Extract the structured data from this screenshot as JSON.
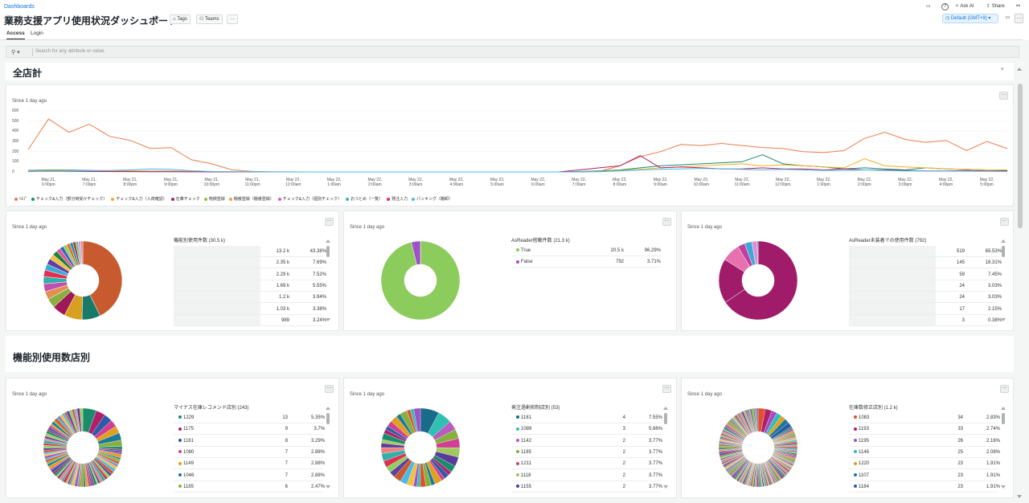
{
  "header": {
    "breadcrumb": "Dashboards",
    "title": "業務支援アプリ使用状況ダッシュボード",
    "tags_label": "Tags",
    "teams_label": "Teams",
    "more_label": "···",
    "ask_ai_label": "Ask AI",
    "share_label": "Share",
    "timezone_label": "Default (GMT+9)"
  },
  "tabs": [
    {
      "label": "Access"
    },
    {
      "label": "Login"
    }
  ],
  "filter": {
    "placeholder": "Search for any attribute or value."
  },
  "sections": [
    {
      "title": "全店計"
    },
    {
      "title": "機能別使用数店別"
    }
  ],
  "line_chart": {
    "since": "Since 1 day ago",
    "y_ticks": [
      "600",
      "500",
      "400",
      "300",
      "200",
      "100",
      "0"
    ],
    "x_ticks": [
      [
        "May 21,",
        "6:00pm"
      ],
      [
        "May 21,",
        "7:00pm"
      ],
      [
        "May 21,",
        "8:00pm"
      ],
      [
        "May 21,",
        "9:00pm"
      ],
      [
        "May 21,",
        "10:00pm"
      ],
      [
        "May 21,",
        "11:00pm"
      ],
      [
        "May 22,",
        "12:00am"
      ],
      [
        "May 22,",
        "1:00am"
      ],
      [
        "May 22,",
        "2:00am"
      ],
      [
        "May 22,",
        "3:00am"
      ],
      [
        "May 22,",
        "4:00am"
      ],
      [
        "May 22,",
        "5:00am"
      ],
      [
        "May 22,",
        "6:00am"
      ],
      [
        "May 22,",
        "7:00am"
      ],
      [
        "May 22,",
        "8:00am"
      ],
      [
        "May 22,",
        "9:00am"
      ],
      [
        "May 22,",
        "10:00am"
      ],
      [
        "May 22,",
        "11:00am"
      ],
      [
        "May 22,",
        "12:00pm"
      ],
      [
        "May 22,",
        "1:00pm"
      ],
      [
        "May 22,",
        "2:00pm"
      ],
      [
        "May 22,",
        "3:00pm"
      ],
      [
        "May 22,",
        "4:00pm"
      ],
      [
        "May 22,",
        "5:00pm"
      ]
    ],
    "legend": [
      {
        "name": "ﾍﾙﾌﾟ",
        "color": "#f07a4a"
      },
      {
        "name": "チェック&入力（部分荷受けチェック）",
        "color": "#1a8c6b"
      },
      {
        "name": "チェック&入力（入荷確認）",
        "color": "#f0b020"
      },
      {
        "name": "在庫チェック",
        "color": "#b0206a"
      },
      {
        "name": "物損登録",
        "color": "#88c440"
      },
      {
        "name": "棚番登録（棚番登録）",
        "color": "#f0a050"
      },
      {
        "name": "チェック&入力（個別チェック）",
        "color": "#d45cc0"
      },
      {
        "name": "おつとめ（一覧）",
        "color": "#2ec0b0"
      },
      {
        "name": "発注入力",
        "color": "#e0305a"
      },
      {
        "name": "パッキング（棚卸）",
        "color": "#4db8e8"
      }
    ]
  },
  "chart_data": {
    "type": "line",
    "ylim": [
      0,
      600
    ],
    "x": [
      "5/21 5:30pm",
      "6:00pm",
      "6:30pm",
      "7:00pm",
      "7:30pm",
      "8:00pm",
      "8:30pm",
      "9:00pm",
      "9:30pm",
      "10:00pm",
      "10:30pm",
      "11:00pm",
      "11:30pm",
      "12:00am",
      "12:30am",
      "1:00am",
      "1:30am",
      "2:00am",
      "2:30am",
      "3:00am",
      "3:30am",
      "4:00am",
      "4:30am",
      "5:00am",
      "5:30am",
      "6:00am",
      "6:30am",
      "7:00am",
      "7:30am",
      "8:00am",
      "8:30am",
      "9:00am",
      "9:30am",
      "10:00am",
      "10:30am",
      "11:00am",
      "11:30am",
      "12:00pm",
      "12:30pm",
      "1:00pm",
      "1:30pm",
      "2:00pm",
      "2:30pm",
      "3:00pm",
      "3:30pm",
      "4:00pm",
      "4:30pm",
      "5:00pm",
      "5:30pm"
    ],
    "series": [
      {
        "name": "ﾍﾙﾌﾟ",
        "values": [
          220,
          520,
          390,
          470,
          350,
          310,
          230,
          240,
          120,
          80,
          20,
          5,
          2,
          1,
          0,
          0,
          0,
          0,
          0,
          0,
          0,
          0,
          0,
          0,
          0,
          0,
          0,
          0,
          5,
          60,
          150,
          200,
          270,
          260,
          280,
          260,
          240,
          230,
          200,
          190,
          210,
          330,
          390,
          320,
          290,
          310,
          210,
          300,
          230
        ]
      },
      {
        "name": "チェック&入力（部分荷受けチェック）",
        "values": [
          15,
          20,
          18,
          15,
          12,
          10,
          8,
          8,
          5,
          3,
          2,
          1,
          0,
          0,
          0,
          0,
          0,
          0,
          0,
          0,
          0,
          0,
          0,
          0,
          0,
          0,
          0,
          5,
          10,
          20,
          40,
          60,
          70,
          80,
          90,
          100,
          170,
          80,
          60,
          50,
          30,
          40,
          30,
          20,
          40,
          30,
          25,
          20,
          15
        ]
      },
      {
        "name": "チェック&入力（入荷確認）",
        "values": [
          10,
          15,
          12,
          10,
          8,
          8,
          6,
          5,
          4,
          2,
          1,
          0,
          0,
          0,
          0,
          0,
          0,
          0,
          0,
          0,
          0,
          0,
          0,
          0,
          0,
          0,
          0,
          2,
          5,
          15,
          25,
          40,
          50,
          60,
          70,
          80,
          60,
          70,
          60,
          50,
          40,
          130,
          60,
          50,
          40,
          30,
          25,
          20,
          20
        ]
      },
      {
        "name": "在庫チェック",
        "values": [
          5,
          8,
          6,
          5,
          4,
          3,
          2,
          2,
          1,
          1,
          0,
          0,
          0,
          0,
          0,
          0,
          0,
          0,
          0,
          0,
          0,
          0,
          0,
          0,
          0,
          0,
          0,
          20,
          40,
          60,
          160,
          40,
          50,
          40,
          30,
          30,
          40,
          30,
          30,
          20,
          30,
          20,
          20,
          15,
          10,
          10,
          15,
          10,
          10
        ]
      },
      {
        "name": "パッキング（棚卸）",
        "values": [
          8,
          10,
          9,
          12,
          15,
          20,
          30,
          25,
          12,
          5,
          2,
          1,
          0,
          0,
          0,
          0,
          0,
          0,
          0,
          0,
          0,
          0,
          0,
          0,
          0,
          0,
          0,
          0,
          2,
          10,
          20,
          25,
          30,
          35,
          30,
          25,
          20,
          25,
          20,
          15,
          15,
          20,
          15,
          10,
          10,
          8,
          8,
          6,
          5
        ]
      }
    ]
  },
  "pie_panels": [
    {
      "since": "Since 1 day ago",
      "title": "機能別使用件数 (30.5 k)",
      "rows": [
        {
          "value": "13.2 k",
          "pct": "43.38%"
        },
        {
          "value": "2.35 k",
          "pct": "7.69%"
        },
        {
          "value": "2.29 k",
          "pct": "7.52%"
        },
        {
          "value": "1.69 k",
          "pct": "5.55%"
        },
        {
          "value": "1.2 k",
          "pct": "3.94%"
        },
        {
          "value": "1.03 k",
          "pct": "3.38%"
        },
        {
          "value": "989",
          "pct": "3.24%"
        }
      ]
    },
    {
      "since": "Since 1 day ago",
      "title": "AsReader搭載件数 (21.3 k)",
      "rows": [
        {
          "name": "True",
          "value": "20.5 k",
          "pct": "96.29%",
          "color": "#8ccc5c"
        },
        {
          "name": "False",
          "value": "792",
          "pct": "3.71%",
          "color": "#a050c8"
        }
      ]
    },
    {
      "since": "Since 1 day ago",
      "title": "AsReader未装着での使用件数 (792)",
      "rows": [
        {
          "value": "519",
          "pct": "65.53%"
        },
        {
          "value": "145",
          "pct": "18.31%"
        },
        {
          "value": "59",
          "pct": "7.45%"
        },
        {
          "value": "24",
          "pct": "3.03%"
        },
        {
          "value": "24",
          "pct": "3.03%"
        },
        {
          "value": "17",
          "pct": "2.15%"
        },
        {
          "value": "3",
          "pct": "0.38%"
        }
      ]
    },
    {
      "since": "Since 1 day ago",
      "title": "マイナス在庫レコメンド店別 (243)",
      "rows": [
        {
          "name": "1229",
          "value": "13",
          "pct": "5.35%",
          "color": "#1a8c6b"
        },
        {
          "name": "1175",
          "value": "9",
          "pct": "3.7%",
          "color": "#b0206a"
        },
        {
          "name": "1161",
          "value": "8",
          "pct": "3.29%",
          "color": "#2a5aa8"
        },
        {
          "name": "1080",
          "value": "7",
          "pct": "2.88%",
          "color": "#d04090"
        },
        {
          "name": "1149",
          "value": "7",
          "pct": "2.88%",
          "color": "#e0a020"
        },
        {
          "name": "1046",
          "value": "7",
          "pct": "2.88%",
          "color": "#1a7a9a"
        },
        {
          "name": "1185",
          "value": "6",
          "pct": "2.47%",
          "color": "#88b040"
        }
      ]
    },
    {
      "since": "Since 1 day ago",
      "title": "発注過剰抑制店別 (53)",
      "rows": [
        {
          "name": "1181",
          "value": "4",
          "pct": "7.55%",
          "color": "#1a6a8a"
        },
        {
          "name": "1089",
          "value": "3",
          "pct": "5.66%",
          "color": "#2ec0b0"
        },
        {
          "name": "1142",
          "value": "2",
          "pct": "3.77%",
          "color": "#b85cc0"
        },
        {
          "name": "1185",
          "value": "2",
          "pct": "3.77%",
          "color": "#88b040"
        },
        {
          "name": "1211",
          "value": "2",
          "pct": "3.77%",
          "color": "#d04090"
        },
        {
          "name": "1118",
          "value": "2",
          "pct": "3.77%",
          "color": "#a0c860"
        },
        {
          "name": "1155",
          "value": "2",
          "pct": "3.77%",
          "color": "#5a3a9a"
        }
      ]
    },
    {
      "since": "Since 1 day ago",
      "title": "在庫数修正店別 (1.2 k)",
      "rows": [
        {
          "name": "1083",
          "value": "34",
          "pct": "2.83%",
          "color": "#e0502a"
        },
        {
          "name": "1193",
          "value": "33",
          "pct": "2.74%",
          "color": "#b0206a"
        },
        {
          "name": "1195",
          "value": "26",
          "pct": "2.16%",
          "color": "#a050c8"
        },
        {
          "name": "1146",
          "value": "25",
          "pct": "2.08%",
          "color": "#2ec0b0"
        },
        {
          "name": "1220",
          "value": "23",
          "pct": "1.91%",
          "color": "#e0a020"
        },
        {
          "name": "1107",
          "value": "23",
          "pct": "1.91%",
          "color": "#1a7a9a"
        },
        {
          "name": "1184",
          "value": "23",
          "pct": "1.91%",
          "color": "#2a5aa8"
        }
      ]
    }
  ],
  "donuts": [
    {
      "slices": [
        43.38,
        7.69,
        7.52,
        5.55,
        3.94,
        3.38,
        3.24,
        3,
        2.8,
        2.6,
        2.4,
        2.2,
        2,
        1.8,
        1.6,
        1.5,
        1.4,
        1.3,
        1.2,
        1.1,
        1,
        0.9
      ],
      "colors": [
        "#c85a30",
        "#1a7a6a",
        "#d8a020",
        "#a01858",
        "#88b040",
        "#e09050",
        "#c050b0",
        "#30b0a8",
        "#e03050",
        "#40a8d8",
        "#6040a0",
        "#f0c040",
        "#208040",
        "#d86090",
        "#4060c0",
        "#90d060",
        "#e07020",
        "#2090c0",
        "#b04020",
        "#70c0a0",
        "#c0a0e0",
        "#f08080"
      ]
    },
    {
      "slices": [
        96.29,
        3.71
      ],
      "colors": [
        "#8ccc5c",
        "#a050c8"
      ]
    },
    {
      "slices": [
        65.53,
        18.31,
        7.45,
        3.03,
        3.03,
        2.15,
        0.38
      ],
      "colors": [
        "#a01c6a",
        "#a01c6a",
        "#e870b0",
        "#c040a0",
        "#40a8d8",
        "#d890d0",
        "#2a5aa8"
      ]
    },
    {
      "slices": [
        5.35,
        3.7,
        3.29,
        2.88,
        2.88,
        2.88,
        2.47
      ],
      "colors": [
        "#1a8c6b",
        "#b0206a",
        "#2a5aa8",
        "#d04090",
        "#e0a020",
        "#1a7a9a",
        "#88b040"
      ],
      "many": 80
    },
    {
      "slices": [
        7.55,
        5.66,
        3.77,
        3.77,
        3.77,
        3.77,
        3.77
      ],
      "colors": [
        "#1a6a8a",
        "#2ec0b0",
        "#b85cc0",
        "#88b040",
        "#d04090",
        "#a0c860",
        "#5a3a9a"
      ],
      "many": 30
    },
    {
      "slices": [
        2.83,
        2.74,
        2.16,
        2.08,
        1.91,
        1.91,
        1.91
      ],
      "colors": [
        "#e0502a",
        "#b0206a",
        "#a050c8",
        "#2ec0b0",
        "#e0a020",
        "#1a7a9a",
        "#2a5aa8"
      ],
      "many": 150
    }
  ]
}
